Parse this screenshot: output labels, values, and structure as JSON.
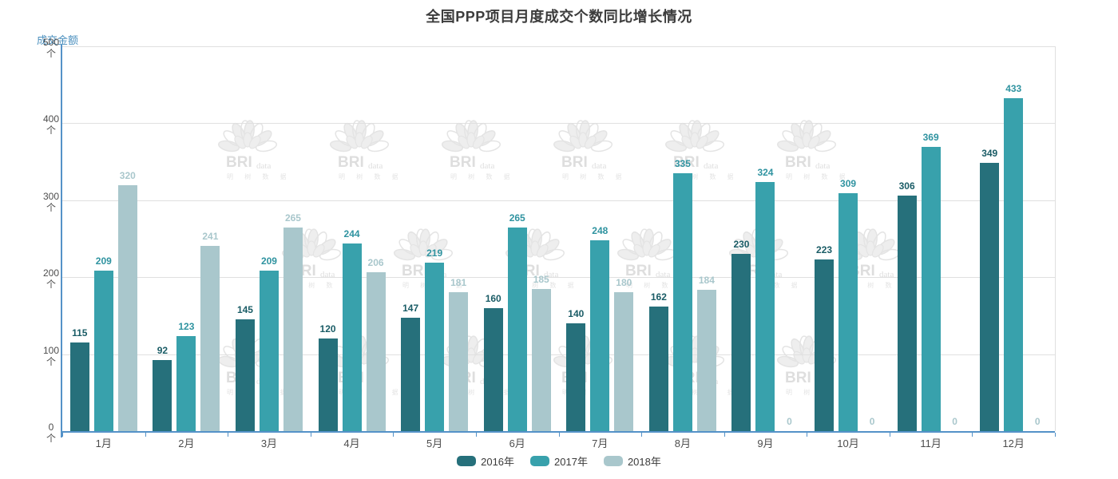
{
  "title": "全国PPP项目月度成交个数同比增长情况",
  "y_axis_name": "成交金额",
  "y_unit": "个",
  "watermark": {
    "brand": "BRI",
    "brand_suffix": "data",
    "brand_cn": "明 树 数 据"
  },
  "colors": {
    "series": [
      "#26707b",
      "#38a1ac",
      "#a9c7cc"
    ],
    "value_labels": [
      "#1a5c66",
      "#2f93a0",
      "#a9c7cc"
    ],
    "axis_line": "#5492c8",
    "axis_name_text": "#4a8fbe",
    "grid": "#e0e0e0",
    "tick_text": "#4d4d4d",
    "title_text": "#3c3c3c",
    "legend_text": "#3a3a3a",
    "watermark": "#e4e4e4"
  },
  "chart_data": {
    "type": "bar",
    "title": "全国PPP项目月度成交个数同比增长情况",
    "ylabel": "成交金额",
    "xlabel": "",
    "categories": [
      "1月",
      "2月",
      "3月",
      "4月",
      "5月",
      "6月",
      "7月",
      "8月",
      "9月",
      "10月",
      "11月",
      "12月"
    ],
    "series": [
      {
        "name": "2016年",
        "color": "#26707b",
        "values": [
          115,
          92,
          145,
          120,
          147,
          160,
          140,
          162,
          230,
          223,
          306,
          349
        ]
      },
      {
        "name": "2017年",
        "color": "#38a1ac",
        "values": [
          209,
          123,
          209,
          244,
          219,
          265,
          248,
          335,
          324,
          309,
          369,
          433
        ]
      },
      {
        "name": "2018年",
        "color": "#a9c7cc",
        "values": [
          320,
          241,
          265,
          206,
          181,
          185,
          180,
          184,
          0,
          0,
          0,
          0
        ]
      }
    ],
    "ylim": [
      0,
      500
    ],
    "y_ticks": [
      0,
      100,
      200,
      300,
      400,
      500
    ],
    "y_tick_unit": "个",
    "grid": true,
    "legend_position": "bottom",
    "value_labels_shown": true
  }
}
